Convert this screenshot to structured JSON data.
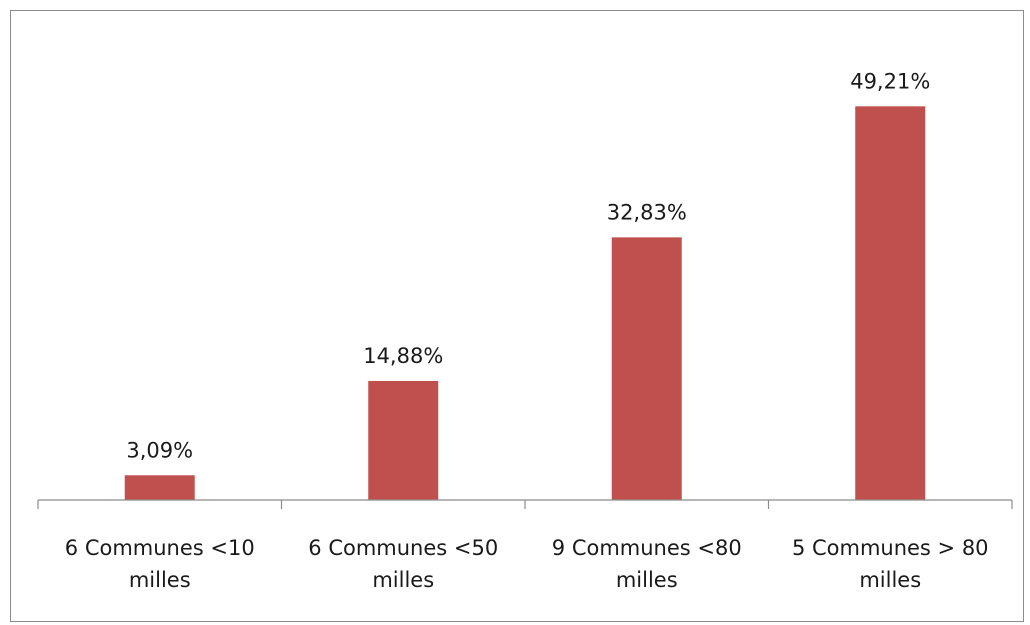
{
  "chart_data": {
    "type": "bar",
    "categories": [
      [
        "6 Communes <10",
        "milles"
      ],
      [
        "6 Communes <50",
        "milles"
      ],
      [
        "9 Communes <80",
        "milles"
      ],
      [
        "5 Communes > 80",
        "milles"
      ]
    ],
    "values": [
      3.09,
      14.88,
      32.83,
      49.21
    ],
    "data_labels": [
      "3,09%",
      "14,88%",
      "32,83%",
      "49,21%"
    ],
    "title": "",
    "xlabel": "",
    "ylabel": "",
    "ylim": [
      0,
      55
    ],
    "grid": false,
    "legend": "none",
    "bar_color": "#c0504d"
  }
}
